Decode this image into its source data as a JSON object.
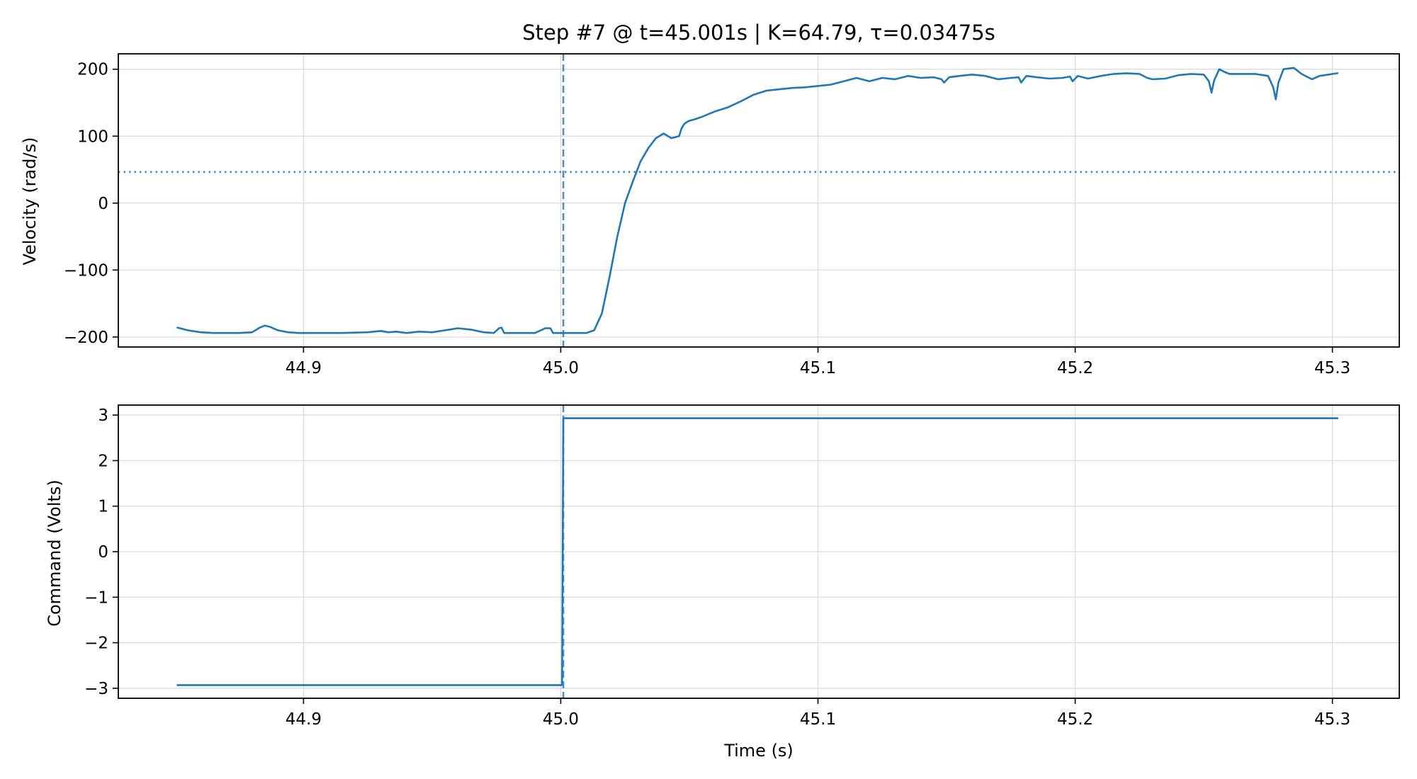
{
  "title": "Step #7 @ t=45.001s  |  K=64.79, τ=0.03475s",
  "colors": {
    "series": "#1f77b4",
    "marker": "#1f77b4",
    "grid": "#d9d9d9"
  },
  "chart_data": [
    {
      "type": "line",
      "ylabel": "Velocity (rad/s)",
      "xlabel": "",
      "xlim": [
        44.828,
        45.326
      ],
      "ylim": [
        -215,
        223
      ],
      "xticks": [
        44.9,
        45.0,
        45.1,
        45.2,
        45.3
      ],
      "xtick_labels": [
        "44.9",
        "45.0",
        "45.1",
        "45.2",
        "45.3"
      ],
      "yticks": [
        -200,
        -100,
        0,
        100,
        200
      ],
      "ytick_labels": [
        "−200",
        "−100",
        "0",
        "100",
        "200"
      ],
      "grid": true,
      "step_time": 45.001,
      "threshold": 46.5,
      "x": [
        44.851,
        44.855,
        44.86,
        44.865,
        44.87,
        44.875,
        44.88,
        44.883,
        44.885,
        44.887,
        44.89,
        44.894,
        44.898,
        44.902,
        44.907,
        44.915,
        44.925,
        44.93,
        44.933,
        44.936,
        44.94,
        44.945,
        44.95,
        44.955,
        44.96,
        44.965,
        44.97,
        44.974,
        44.976,
        44.977,
        44.978,
        44.98,
        44.985,
        44.99,
        44.994,
        44.996,
        44.997,
        44.998,
        45.0,
        45.005,
        45.01,
        45.013,
        45.016,
        45.019,
        45.022,
        45.025,
        45.028,
        45.031,
        45.034,
        45.037,
        45.04,
        45.043,
        45.046,
        45.047,
        45.048,
        45.049,
        45.05,
        45.052,
        45.055,
        45.06,
        45.065,
        45.07,
        45.075,
        45.08,
        45.085,
        45.09,
        45.095,
        45.1,
        45.105,
        45.11,
        45.115,
        45.12,
        45.125,
        45.13,
        45.135,
        45.14,
        45.145,
        45.148,
        45.149,
        45.151,
        45.155,
        45.16,
        45.165,
        45.17,
        45.175,
        45.178,
        45.179,
        45.181,
        45.185,
        45.19,
        45.195,
        45.198,
        45.199,
        45.201,
        45.205,
        45.21,
        45.215,
        45.22,
        45.225,
        45.228,
        45.23,
        45.235,
        45.24,
        45.245,
        45.25,
        45.252,
        45.253,
        45.254,
        45.256,
        45.258,
        45.26,
        45.265,
        45.27,
        45.275,
        45.277,
        45.278,
        45.279,
        45.281,
        45.285,
        45.288,
        45.292,
        45.295,
        45.302
      ],
      "y": [
        -186,
        -190,
        -193,
        -194,
        -194,
        -194,
        -193,
        -186,
        -183,
        -185,
        -190,
        -193,
        -194,
        -194,
        -194,
        -194,
        -193,
        -191,
        -193,
        -192,
        -194,
        -192,
        -193,
        -190,
        -187,
        -189,
        -193,
        -194,
        -187,
        -186,
        -194,
        -194,
        -194,
        -194,
        -187,
        -187,
        -194,
        -194,
        -194,
        -194,
        -194,
        -190,
        -165,
        -110,
        -50,
        0,
        32,
        62,
        82,
        97,
        104,
        97,
        100,
        112,
        118,
        121,
        123,
        125,
        129,
        137,
        143,
        152,
        162,
        168,
        170,
        172,
        173,
        175,
        177,
        182,
        187,
        182,
        187,
        185,
        190,
        187,
        188,
        185,
        180,
        188,
        190,
        192,
        190,
        185,
        187,
        188,
        180,
        190,
        188,
        186,
        187,
        189,
        182,
        190,
        186,
        190,
        193,
        194,
        193,
        187,
        185,
        186,
        191,
        193,
        192,
        182,
        165,
        183,
        200,
        196,
        193,
        193,
        193,
        190,
        173,
        155,
        180,
        200,
        202,
        193,
        185,
        190,
        194
      ]
    },
    {
      "type": "line",
      "ylabel": "Command (Volts)",
      "xlabel": "Time (s)",
      "xlim": [
        44.828,
        45.326
      ],
      "ylim": [
        -3.22,
        3.22
      ],
      "xticks": [
        44.9,
        45.0,
        45.1,
        45.2,
        45.3
      ],
      "xtick_labels": [
        "44.9",
        "45.0",
        "45.1",
        "45.2",
        "45.3"
      ],
      "yticks": [
        -3,
        -2,
        -1,
        0,
        1,
        2,
        3
      ],
      "ytick_labels": [
        "−3",
        "−2",
        "−1",
        "0",
        "1",
        "2",
        "3"
      ],
      "grid": true,
      "step_time": 45.001,
      "x": [
        44.851,
        45.0005,
        45.001,
        45.302
      ],
      "y": [
        -2.93,
        -2.93,
        2.93,
        2.93
      ]
    }
  ]
}
